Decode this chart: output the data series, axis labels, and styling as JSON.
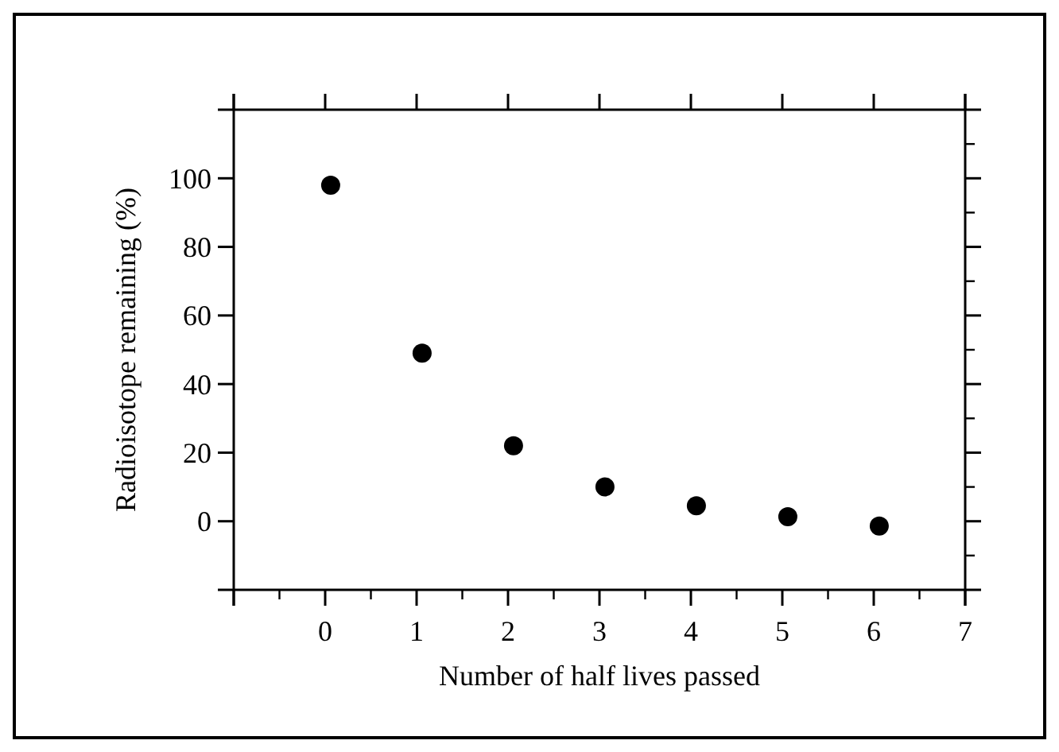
{
  "chart_data": {
    "type": "scatter",
    "xlabel": "Number of half lives passed",
    "ylabel": "Radioisotope remaining (%)",
    "x": [
      0.06,
      1.06,
      2.06,
      3.06,
      4.06,
      5.06,
      6.06
    ],
    "series": [
      {
        "color": "#000000",
        "values": [
          98,
          49,
          22,
          10,
          4.5,
          1.3,
          -1.4
        ]
      }
    ],
    "xlim": [
      -1,
      7
    ],
    "ylim": [
      -20,
      120
    ],
    "xticks": [
      {
        "value": -1,
        "label": null
      },
      0,
      1,
      2,
      3,
      4,
      5,
      6,
      7
    ],
    "yticks": [
      0,
      20,
      40,
      60,
      80,
      100
    ],
    "marker": "circle",
    "grid": false
  }
}
